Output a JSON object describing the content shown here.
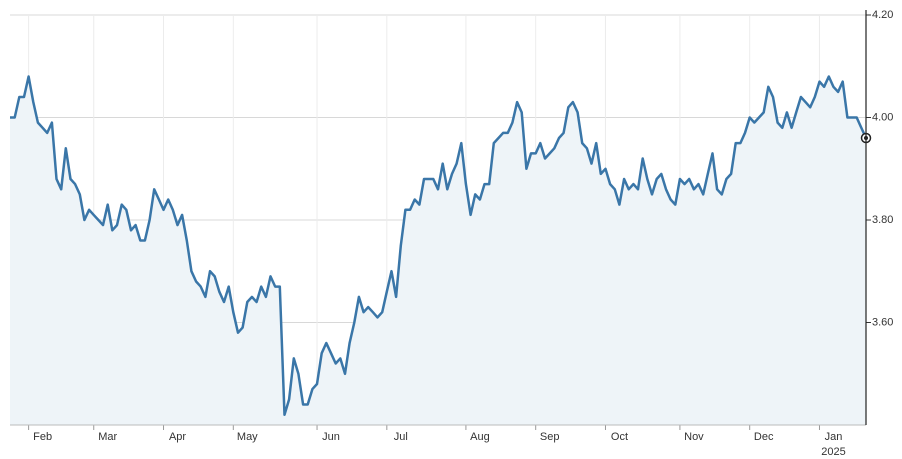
{
  "chart_data": {
    "type": "area",
    "categories": [
      null,
      null,
      null,
      null,
      "Feb",
      null,
      null,
      null,
      null,
      null,
      null,
      null,
      null,
      null,
      null,
      null,
      null,
      null,
      "Mar",
      null,
      null,
      null,
      null,
      null,
      null,
      null,
      null,
      null,
      null,
      null,
      null,
      null,
      null,
      "Apr",
      null,
      null,
      null,
      null,
      null,
      null,
      null,
      null,
      null,
      null,
      null,
      null,
      null,
      null,
      "May",
      null,
      null,
      null,
      null,
      null,
      null,
      null,
      null,
      null,
      null,
      null,
      null,
      null,
      null,
      null,
      null,
      null,
      "Jun",
      null,
      null,
      null,
      null,
      null,
      null,
      null,
      null,
      null,
      null,
      null,
      null,
      null,
      null,
      "Jul",
      null,
      null,
      null,
      null,
      null,
      null,
      null,
      null,
      null,
      null,
      null,
      null,
      null,
      null,
      null,
      null,
      "Aug",
      null,
      null,
      null,
      null,
      null,
      null,
      null,
      null,
      null,
      null,
      null,
      null,
      null,
      null,
      "Sep",
      null,
      null,
      null,
      null,
      null,
      null,
      null,
      null,
      null,
      null,
      null,
      null,
      null,
      null,
      "Oct",
      null,
      null,
      null,
      null,
      null,
      null,
      null,
      null,
      null,
      null,
      null,
      null,
      null,
      null,
      null,
      "Nov",
      null,
      null,
      null,
      null,
      null,
      null,
      null,
      null,
      null,
      null,
      null,
      null,
      null,
      null,
      "Dec",
      null,
      null,
      null,
      null,
      null,
      null,
      null,
      null,
      null,
      null,
      null,
      null,
      null,
      null,
      "Jan",
      null,
      null,
      null,
      null,
      null,
      null,
      null,
      null,
      null,
      null
    ],
    "year_label": "2025",
    "values": [
      4.0,
      4.0,
      4.04,
      4.04,
      4.08,
      4.03,
      3.99,
      3.98,
      3.97,
      3.99,
      3.88,
      3.86,
      3.94,
      3.88,
      3.87,
      3.85,
      3.8,
      3.82,
      3.81,
      3.8,
      3.79,
      3.83,
      3.78,
      3.79,
      3.83,
      3.82,
      3.78,
      3.79,
      3.76,
      3.76,
      3.8,
      3.86,
      3.84,
      3.82,
      3.84,
      3.82,
      3.79,
      3.81,
      3.76,
      3.7,
      3.68,
      3.67,
      3.65,
      3.7,
      3.69,
      3.66,
      3.64,
      3.67,
      3.62,
      3.58,
      3.59,
      3.64,
      3.65,
      3.64,
      3.67,
      3.65,
      3.69,
      3.67,
      3.67,
      3.42,
      3.45,
      3.53,
      3.5,
      3.44,
      3.44,
      3.47,
      3.48,
      3.54,
      3.56,
      3.54,
      3.52,
      3.53,
      3.5,
      3.56,
      3.6,
      3.65,
      3.62,
      3.63,
      3.62,
      3.61,
      3.62,
      3.66,
      3.7,
      3.65,
      3.75,
      3.82,
      3.82,
      3.84,
      3.83,
      3.88,
      3.88,
      3.88,
      3.86,
      3.91,
      3.86,
      3.89,
      3.91,
      3.95,
      3.87,
      3.81,
      3.85,
      3.84,
      3.87,
      3.87,
      3.95,
      3.96,
      3.97,
      3.97,
      3.99,
      4.03,
      4.01,
      3.9,
      3.93,
      3.93,
      3.95,
      3.92,
      3.93,
      3.94,
      3.96,
      3.97,
      4.02,
      4.03,
      4.01,
      3.95,
      3.94,
      3.91,
      3.95,
      3.89,
      3.9,
      3.87,
      3.86,
      3.83,
      3.88,
      3.86,
      3.87,
      3.86,
      3.92,
      3.88,
      3.85,
      3.88,
      3.89,
      3.86,
      3.84,
      3.83,
      3.88,
      3.87,
      3.88,
      3.86,
      3.87,
      3.85,
      3.89,
      3.93,
      3.86,
      3.85,
      3.88,
      3.89,
      3.95,
      3.95,
      3.97,
      4.0,
      3.99,
      4.0,
      4.01,
      4.06,
      4.04,
      3.99,
      3.98,
      4.01,
      3.98,
      4.01,
      4.04,
      4.03,
      4.02,
      4.04,
      4.07,
      4.06,
      4.08,
      4.06,
      4.05,
      4.07,
      4.0,
      4.0,
      4.0,
      3.98,
      3.96
    ],
    "color": "#3a76a8",
    "fill": "#eef4f8",
    "ylim": [
      3.4,
      4.2
    ],
    "yticks": [
      {
        "value": 3.6,
        "label": "3.60"
      },
      {
        "value": 3.8,
        "label": "3.80"
      },
      {
        "value": 4.0,
        "label": "4.00"
      },
      {
        "value": 4.2,
        "label": "4.20"
      }
    ],
    "grid": true,
    "y_axis_side": "right"
  }
}
